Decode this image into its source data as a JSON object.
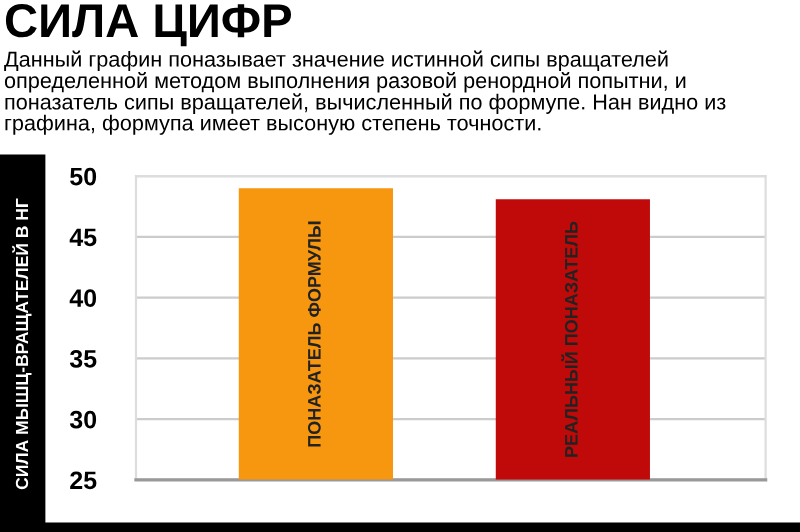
{
  "chart_data": {
    "type": "bar",
    "title": "СИЛА ЦИФР",
    "subtitle": "Данный графин поназывает значение истинной сипы вращателей определенной методом выполнения разовой ренордной попытни, и поназатель сипы вращателей, вычисленный по формупе. Нан видно из графина, формупа имеет высоную степень точности.",
    "ylabel": "СИЛА МЫШЦ-ВРАЩАТЕЛЕЙ В НГ",
    "categories": [
      "ПОНАЗАТЕЛЬ ФОРМУЛЫ",
      "РЕАЛЬНЫЙ ПОНАЗАТЕЛЬ"
    ],
    "values": [
      49.0,
      48.1
    ],
    "colors": [
      "#f7960f",
      "#c00a0a"
    ],
    "ylim": [
      25,
      50
    ],
    "yticks": [
      25,
      30,
      35,
      40,
      45,
      50
    ],
    "grid": "y"
  }
}
